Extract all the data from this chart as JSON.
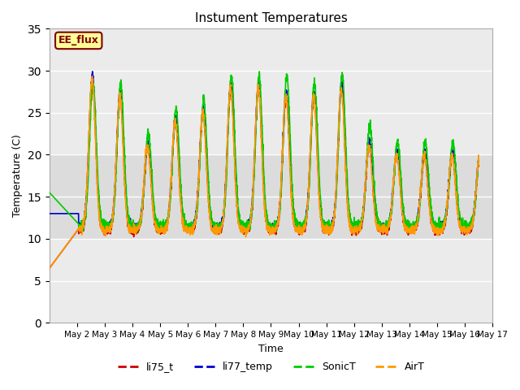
{
  "title": "Instument Temperatures",
  "xlabel": "Time",
  "ylabel": "Temperature (C)",
  "ylim": [
    0,
    35
  ],
  "yticks": [
    0,
    5,
    10,
    15,
    20,
    25,
    30,
    35
  ],
  "xlim_days": [
    1.0,
    16.5
  ],
  "xtick_days": [
    2,
    3,
    4,
    5,
    6,
    7,
    8,
    9,
    10,
    11,
    12,
    13,
    14,
    15,
    16,
    17
  ],
  "xtick_labels": [
    "May 2",
    "May 3",
    "May 4",
    "May 5",
    "May 6",
    "May 7",
    "May 8",
    "May 9",
    "May 10",
    "May 11",
    "May 12",
    "May 13",
    "May 14",
    "May 15",
    "May 16",
    "May 17"
  ],
  "shade_ymin": 10,
  "shade_ymax": 20,
  "shade_color": "#dcdcdc",
  "bg_color": "#ebebeb",
  "annotation_text": "EE_flux",
  "annotation_bg": "#ffff99",
  "annotation_fg": "#800000",
  "annotation_border": "#800000",
  "line_colors": {
    "li75_t": "#cc0000",
    "li77_temp": "#0000cc",
    "SonicT": "#00cc00",
    "AirT": "#ff9900"
  },
  "linewidth": 1.2
}
